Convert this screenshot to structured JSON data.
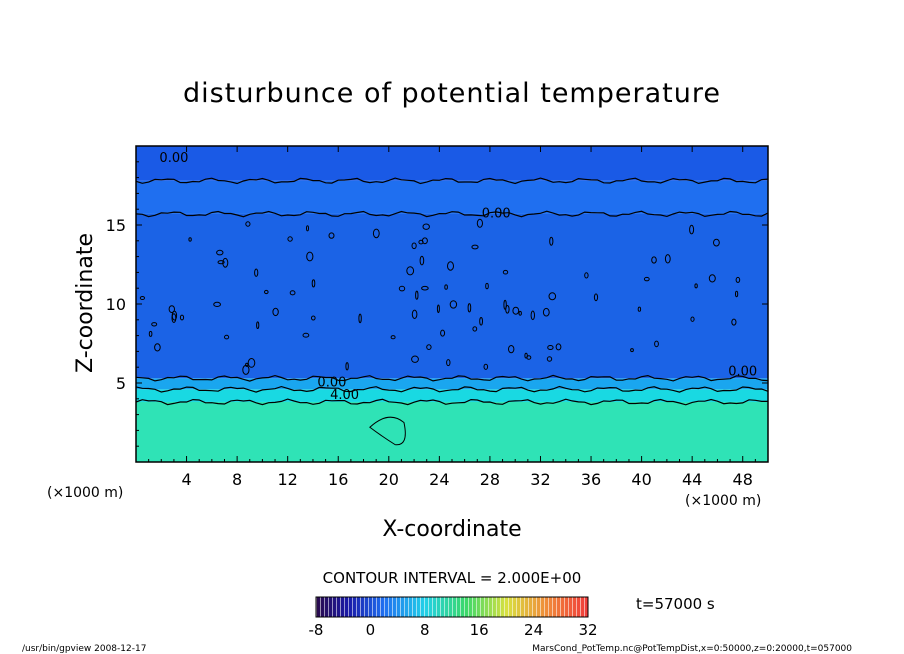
{
  "chart_data": {
    "type": "heatmap",
    "title": "disturbunce of potential temperature",
    "xlabel": "X-coordinate",
    "ylabel": "Z-coordinate",
    "x_unit": "(×1000 m)",
    "y_unit": "(×1000 m)",
    "xlim": [
      0,
      50
    ],
    "ylim": [
      0,
      20
    ],
    "x_ticks": [
      4,
      8,
      12,
      16,
      20,
      24,
      28,
      32,
      36,
      40,
      44,
      48
    ],
    "y_ticks": [
      5,
      10,
      15
    ],
    "contour_interval": "CONTOUR INTERVAL = 2.000E+00",
    "time": "t=57000 s",
    "colorbar": {
      "min": -8,
      "max": 32,
      "ticks": [
        -8,
        0,
        8,
        16,
        24,
        32
      ]
    },
    "contour_labels": [
      {
        "text": "0.00",
        "x": 3,
        "z": 19.3
      },
      {
        "text": "0.00",
        "x": 28.5,
        "z": 15.8
      },
      {
        "text": "0.00",
        "x": 15.5,
        "z": 5.1
      },
      {
        "text": "4.00",
        "x": 16.5,
        "z": 4.3
      },
      {
        "text": "0.00",
        "x": 48,
        "z": 5.8
      }
    ],
    "bands": [
      {
        "z_from": 0,
        "z_to": 3.8,
        "approx_value": 8,
        "color": "#2fe3b6"
      },
      {
        "z_from": 3.8,
        "z_to": 4.6,
        "approx_value": 6,
        "color": "#19d9e2"
      },
      {
        "z_from": 4.6,
        "z_to": 5.3,
        "approx_value": 2,
        "color": "#1aa6ef"
      },
      {
        "z_from": 5.3,
        "z_to": 15.7,
        "approx_value": 0,
        "color": "#1b63e6"
      },
      {
        "z_from": 15.7,
        "z_to": 17.8,
        "approx_value": 0,
        "color": "#1f6ff0"
      },
      {
        "z_from": 17.8,
        "z_to": 20,
        "approx_value": 0,
        "color": "#1a5ae6"
      }
    ]
  },
  "footer": {
    "left": "/usr/bin/gpview  2008-12-17",
    "right": "MarsCond_PotTemp.nc@PotTempDist,x=0:50000,z=0:20000,t=057000"
  }
}
